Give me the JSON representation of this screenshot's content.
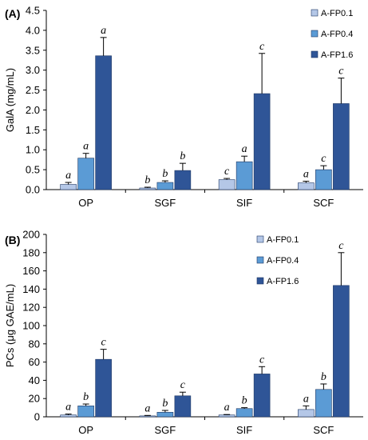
{
  "chart_data": [
    {
      "type": "bar",
      "panel_label": "(A)",
      "ylabel": "GalA (mg/mL)",
      "ylim": [
        0,
        4.5
      ],
      "yticks": [
        "0.0",
        "0.5",
        "1.0",
        "1.5",
        "2.0",
        "2.5",
        "3.0",
        "3.5",
        "4.0",
        "4.5"
      ],
      "ytick_values": [
        0,
        0.5,
        1.0,
        1.5,
        2.0,
        2.5,
        3.0,
        3.5,
        4.0,
        4.5
      ],
      "categories": [
        "OP",
        "SGF",
        "SIF",
        "SCF"
      ],
      "legend_position": "top-right",
      "series": [
        {
          "name": "A-FP0.1",
          "color": "#b4c7e7",
          "values": [
            0.13,
            0.04,
            0.25,
            0.17
          ],
          "errors": [
            0.05,
            0.02,
            0.03,
            0.04
          ],
          "letters": [
            "a",
            "b",
            "c",
            "a"
          ]
        },
        {
          "name": "A-FP0.4",
          "color": "#5b9bd5",
          "values": [
            0.79,
            0.18,
            0.7,
            0.5
          ],
          "errors": [
            0.12,
            0.04,
            0.14,
            0.1
          ],
          "letters": [
            "a",
            "b",
            "a",
            "c"
          ]
        },
        {
          "name": "A-FP1.6",
          "color": "#2f5597",
          "values": [
            3.36,
            0.48,
            2.41,
            2.16
          ],
          "errors": [
            0.46,
            0.18,
            1.01,
            0.64
          ],
          "letters": [
            "a",
            "b",
            "c",
            "c"
          ]
        }
      ]
    },
    {
      "type": "bar",
      "panel_label": "(B)",
      "ylabel": "PCs (μg GAE/mL)",
      "ylim": [
        0,
        200
      ],
      "yticks": [
        "0",
        "20",
        "40",
        "60",
        "80",
        "100",
        "120",
        "140",
        "160",
        "180",
        "200"
      ],
      "ytick_values": [
        0,
        20,
        40,
        60,
        80,
        100,
        120,
        140,
        160,
        180,
        200
      ],
      "categories": [
        "OP",
        "SGF",
        "SIF",
        "SCF"
      ],
      "legend_position": "top-right",
      "series": [
        {
          "name": "A-FP0.1",
          "color": "#b4c7e7",
          "values": [
            2,
            1,
            2,
            8
          ],
          "errors": [
            1,
            0.5,
            0.5,
            4
          ],
          "letters": [
            "a",
            "a",
            "a",
            "a"
          ]
        },
        {
          "name": "A-FP0.4",
          "color": "#5b9bd5",
          "values": [
            12,
            5,
            9,
            30
          ],
          "errors": [
            2,
            2,
            1,
            6
          ],
          "letters": [
            "b",
            "b",
            "b",
            "b"
          ]
        },
        {
          "name": "A-FP1.6",
          "color": "#2f5597",
          "values": [
            63,
            23,
            47,
            144
          ],
          "errors": [
            11,
            4,
            8,
            36
          ],
          "letters": [
            "c",
            "c",
            "c",
            "c"
          ]
        }
      ]
    }
  ]
}
